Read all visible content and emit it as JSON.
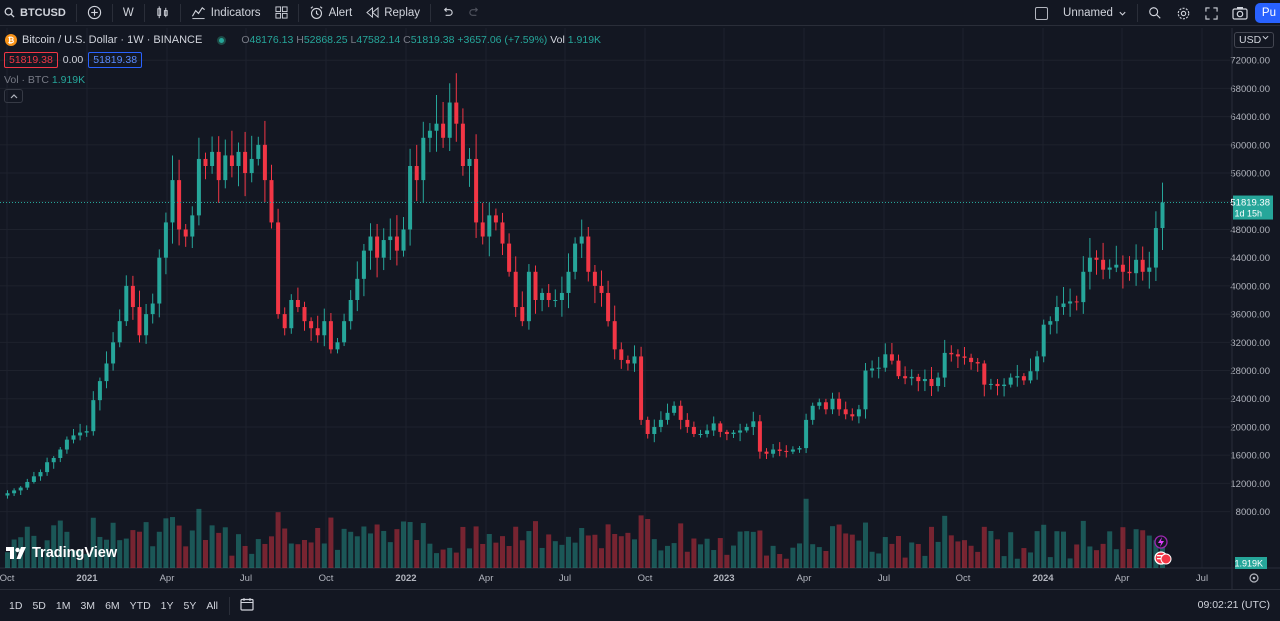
{
  "toolbar": {
    "symbol": "BTCUSD",
    "interval": "W",
    "indicators": "Indicators",
    "alert": "Alert",
    "replay": "Replay",
    "layout_name": "Unnamed",
    "publish": "Pu"
  },
  "legend": {
    "title": "Bitcoin / U.S. Dollar · 1W · BINANCE",
    "coin_glyph": "₿",
    "o_label": "O",
    "o_value": "48176.13",
    "h_label": "H",
    "h_value": "52868.25",
    "l_label": "L",
    "l_value": "47582.14",
    "c_label": "C",
    "c_value": "51819.38",
    "change": "+3657.06 (+7.59%)",
    "vol_label": "Vol",
    "vol_value": "1.919K",
    "sell_price": "51819.38",
    "spread": "0.00",
    "buy_price": "51819.38"
  },
  "volume_legend": {
    "label": "Vol · BTC",
    "value": "1.919K"
  },
  "currency": "USD",
  "price_labels": {
    "last_price": "51819.38",
    "countdown": "1d 15h",
    "volume": "1.919K"
  },
  "logo_text": "TradingView",
  "bottom": {
    "ranges": [
      "1D",
      "5D",
      "1M",
      "3M",
      "6M",
      "YTD",
      "1Y",
      "5Y",
      "All"
    ],
    "clock": "09:02:21 (UTC)"
  },
  "colors": {
    "up": "#26a69a",
    "down": "#f23645",
    "background": "#131722",
    "grid": "#1e222d"
  },
  "chart_data": {
    "type": "candlestick",
    "title": "Bitcoin / U.S. Dollar · 1W · BINANCE",
    "ylim": [
      0,
      76000
    ],
    "y_ticks": [
      8000,
      12000,
      16000,
      20000,
      24000,
      28000,
      32000,
      36000,
      40000,
      44000,
      48000,
      52000,
      56000,
      60000,
      64000,
      68000,
      72000
    ],
    "y_tick_labels": [
      "8000.00",
      "12000.00",
      "16000.00",
      "20000.00",
      "24000.00",
      "28000.00",
      "32000.00",
      "36000.00",
      "40000.00",
      "44000.00",
      "48000.00",
      "52000.00",
      "56000.00",
      "60000.00",
      "64000.00",
      "68000.00",
      "72000.00"
    ],
    "x_tick_labels": [
      "Oct",
      "2021",
      "Apr",
      "Jul",
      "Oct",
      "2022",
      "Apr",
      "Jul",
      "Oct",
      "2023",
      "Apr",
      "Jul",
      "Oct",
      "2024",
      "Apr",
      "Jul"
    ],
    "last_close": 51819.38,
    "closes": [
      10600,
      11000,
      11400,
      12200,
      13000,
      13600,
      15000,
      15600,
      16800,
      18200,
      18800,
      19200,
      19400,
      23800,
      26500,
      29000,
      32000,
      35000,
      40000,
      37000,
      33000,
      36000,
      37500,
      44000,
      49000,
      55000,
      48000,
      47000,
      50000,
      58000,
      57000,
      59000,
      55000,
      58500,
      57000,
      59000,
      56000,
      58000,
      60000,
      55000,
      49000,
      36000,
      34000,
      38000,
      37000,
      35000,
      34000,
      33000,
      35000,
      31000,
      32000,
      35000,
      38000,
      41000,
      45000,
      47000,
      44000,
      46500,
      47000,
      45000,
      48000,
      57000,
      55000,
      61000,
      62000,
      63000,
      61000,
      66000,
      63000,
      57000,
      58000,
      49000,
      47000,
      50000,
      49000,
      46000,
      42000,
      37000,
      35000,
      42000,
      38000,
      39000,
      38000,
      38000,
      39000,
      42000,
      46000,
      47000,
      42000,
      40000,
      39000,
      35000,
      31000,
      29500,
      29000,
      30000,
      21000,
      19000,
      20000,
      21000,
      22000,
      23000,
      21000,
      20000,
      19000,
      19000,
      19500,
      20500,
      19300,
      19000,
      19200,
      19500,
      20000,
      20800,
      16500,
      16200,
      16800,
      16600,
      16500,
      16800,
      17000,
      21000,
      23000,
      23500,
      22500,
      24000,
      22500,
      21800,
      21500,
      22500,
      28000,
      28300,
      28400,
      30300,
      29400,
      27200,
      26900,
      27100,
      26500,
      26800,
      25800,
      27000,
      30500,
      30300,
      30000,
      29800,
      29200,
      29000,
      26000,
      26100,
      25800,
      26000,
      27000,
      27200,
      26600,
      27900,
      30000,
      34500,
      35000,
      37000,
      37500,
      37800,
      37700,
      42000,
      44000,
      43700,
      42300,
      42600,
      43000,
      42000,
      41800,
      43700,
      42000,
      42600,
      48200,
      51819
    ]
  }
}
